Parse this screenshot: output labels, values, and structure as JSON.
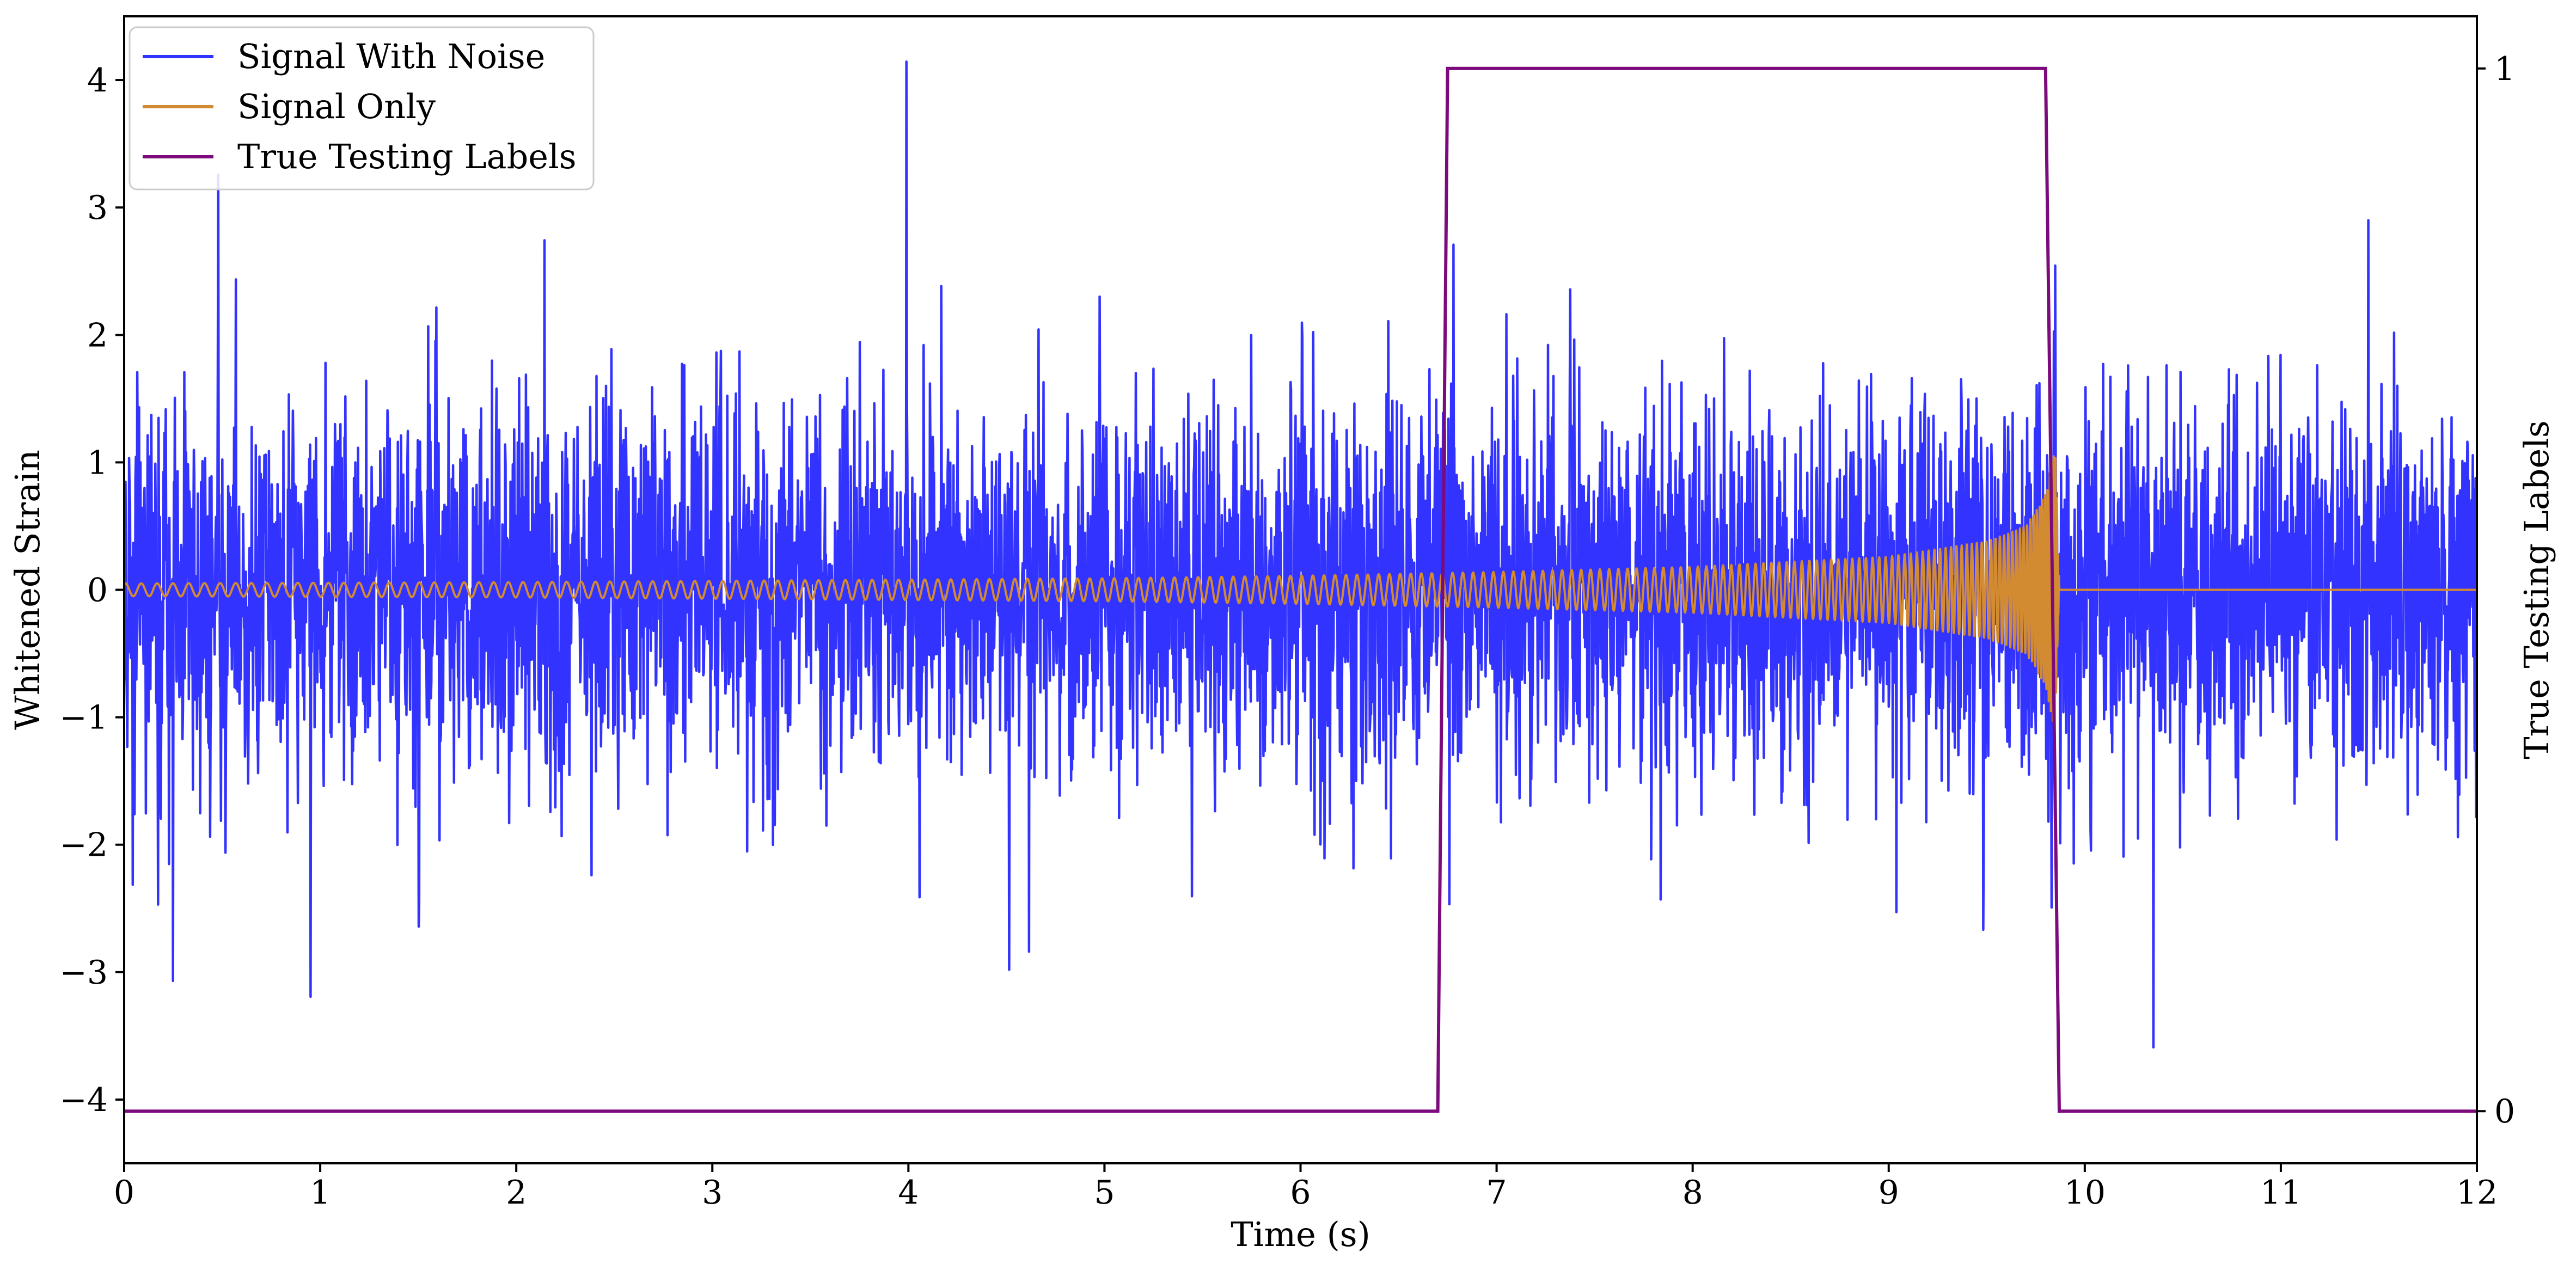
{
  "chart_data": {
    "type": "line",
    "xlabel": "Time (s)",
    "ylabel": "Whitened Strain",
    "y2label": "True Testing Labels",
    "xlim": [
      0,
      12
    ],
    "ylim": [
      -4.5,
      4.5
    ],
    "y2lim": [
      -0.05,
      1.05
    ],
    "x_ticks": [
      "0",
      "1",
      "2",
      "3",
      "4",
      "5",
      "6",
      "7",
      "8",
      "9",
      "10",
      "11",
      "12"
    ],
    "y_ticks": [
      "−4",
      "−3",
      "−2",
      "−1",
      "0",
      "1",
      "2",
      "3",
      "4"
    ],
    "y2_ticks": [
      "0",
      "1"
    ],
    "grid": false,
    "legend_position": "top-left",
    "colors": {
      "signal_with_noise": "#3333ff",
      "signal_only": "#d38b32",
      "true_labels": "#7d0a7d"
    },
    "series": [
      {
        "name": "Signal With Noise",
        "axis": "left",
        "description_of_values": "noise samples, approx. std 0.75, extremes between -3.6 and 4.2",
        "notable_extremes": [
          [
            0.48,
            3.22
          ],
          [
            3.99,
            4.21
          ],
          [
            0.95,
            -3.22
          ],
          [
            0.25,
            -3.12
          ],
          [
            10.35,
            -3.59
          ],
          [
            9.83,
            -3.17
          ]
        ]
      },
      {
        "name": "Signal Only",
        "axis": "left",
        "envelope": {
          "x": [
            0,
            1,
            2,
            3,
            4,
            5,
            6,
            7,
            8,
            9,
            9.5,
            9.7,
            9.8,
            9.85,
            9.87
          ],
          "y": [
            0.05,
            0.055,
            0.06,
            0.07,
            0.08,
            0.09,
            0.11,
            0.14,
            0.18,
            0.26,
            0.38,
            0.5,
            0.75,
            1.15,
            0
          ]
        },
        "merger_time": 9.87
      },
      {
        "name": "True Testing Labels",
        "axis": "right",
        "x": [
          0,
          6.7,
          6.75,
          9.8,
          9.87,
          12
        ],
        "y": [
          0,
          0,
          1,
          1,
          0,
          0
        ]
      }
    ]
  }
}
